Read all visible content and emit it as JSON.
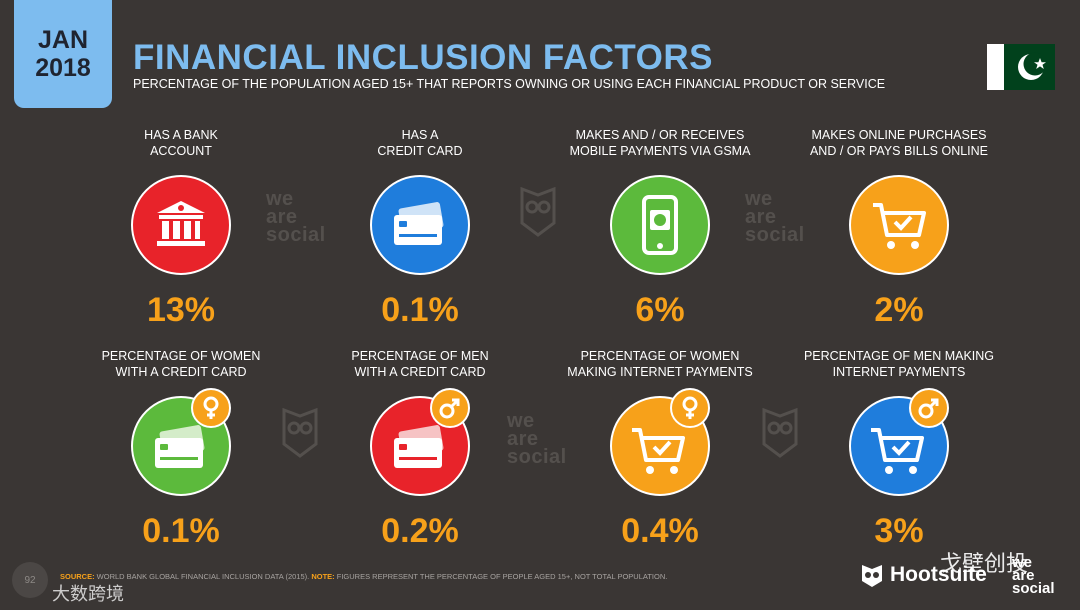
{
  "header": {
    "date_month": "JAN",
    "date_year": "2018",
    "title": "FINANCIAL INCLUSION FACTORS",
    "subtitle": "PERCENTAGE OF THE POPULATION AGED 15+ THAT REPORTS OWNING OR USING EACH FINANCIAL PRODUCT OR SERVICE",
    "flag": "pakistan-flag"
  },
  "colors": {
    "background": "#3a3634",
    "accent_blue": "#7dbcef",
    "accent_orange": "#f7a11a",
    "red": "#e8232a",
    "blue": "#1f7ddc",
    "green": "#5cba3c"
  },
  "stats": [
    {
      "label_line1": "HAS A BANK",
      "label_line2": "ACCOUNT",
      "value": "13%",
      "icon": "bank-icon",
      "color": "red"
    },
    {
      "label_line1": "HAS A",
      "label_line2": "CREDIT CARD",
      "value": "0.1%",
      "icon": "credit-card-icon",
      "color": "blue"
    },
    {
      "label_line1": "MAKES AND / OR RECEIVES",
      "label_line2": "MOBILE PAYMENTS VIA GSMA",
      "value": "6%",
      "icon": "mobile-payment-icon",
      "color": "green"
    },
    {
      "label_line1": "MAKES ONLINE PURCHASES",
      "label_line2": "AND / OR PAYS BILLS ONLINE",
      "value": "2%",
      "icon": "shopping-cart-icon",
      "color": "orange"
    },
    {
      "label_line1": "PERCENTAGE OF WOMEN",
      "label_line2": "WITH A CREDIT CARD",
      "value": "0.1%",
      "icon": "credit-card-icon",
      "color": "green",
      "gender": "female-icon"
    },
    {
      "label_line1": "PERCENTAGE OF MEN",
      "label_line2": "WITH A CREDIT CARD",
      "value": "0.2%",
      "icon": "credit-card-icon",
      "color": "red",
      "gender": "male-icon"
    },
    {
      "label_line1": "PERCENTAGE OF WOMEN",
      "label_line2": "MAKING INTERNET PAYMENTS",
      "value": "0.4%",
      "icon": "shopping-cart-icon",
      "color": "orange",
      "gender": "female-icon"
    },
    {
      "label_line1": "PERCENTAGE OF MEN MAKING",
      "label_line2": "INTERNET PAYMENTS",
      "value": "3%",
      "icon": "shopping-cart-icon",
      "color": "blue",
      "gender": "male-icon"
    }
  ],
  "watermark": {
    "line1": "we",
    "line2": "are",
    "line3": "social"
  },
  "footer": {
    "source_label": "SOURCE:",
    "source_text": " WORLD BANK GLOBAL FINANCIAL INCLUSION DATA (2015). ",
    "note_label": "NOTE:",
    "note_text": " FIGURES REPRESENT THE PERCENTAGE OF PEOPLE AGED 15+, NOT TOTAL POPULATION.",
    "page_number": "92"
  },
  "branding": {
    "hootsuite": "Hootsuite",
    "was_line1": "we",
    "was_line2": "are",
    "was_line3": "social"
  },
  "overlay_watermarks": {
    "chinese_right": "戈壁创投",
    "chinese_left": "大数跨境"
  }
}
